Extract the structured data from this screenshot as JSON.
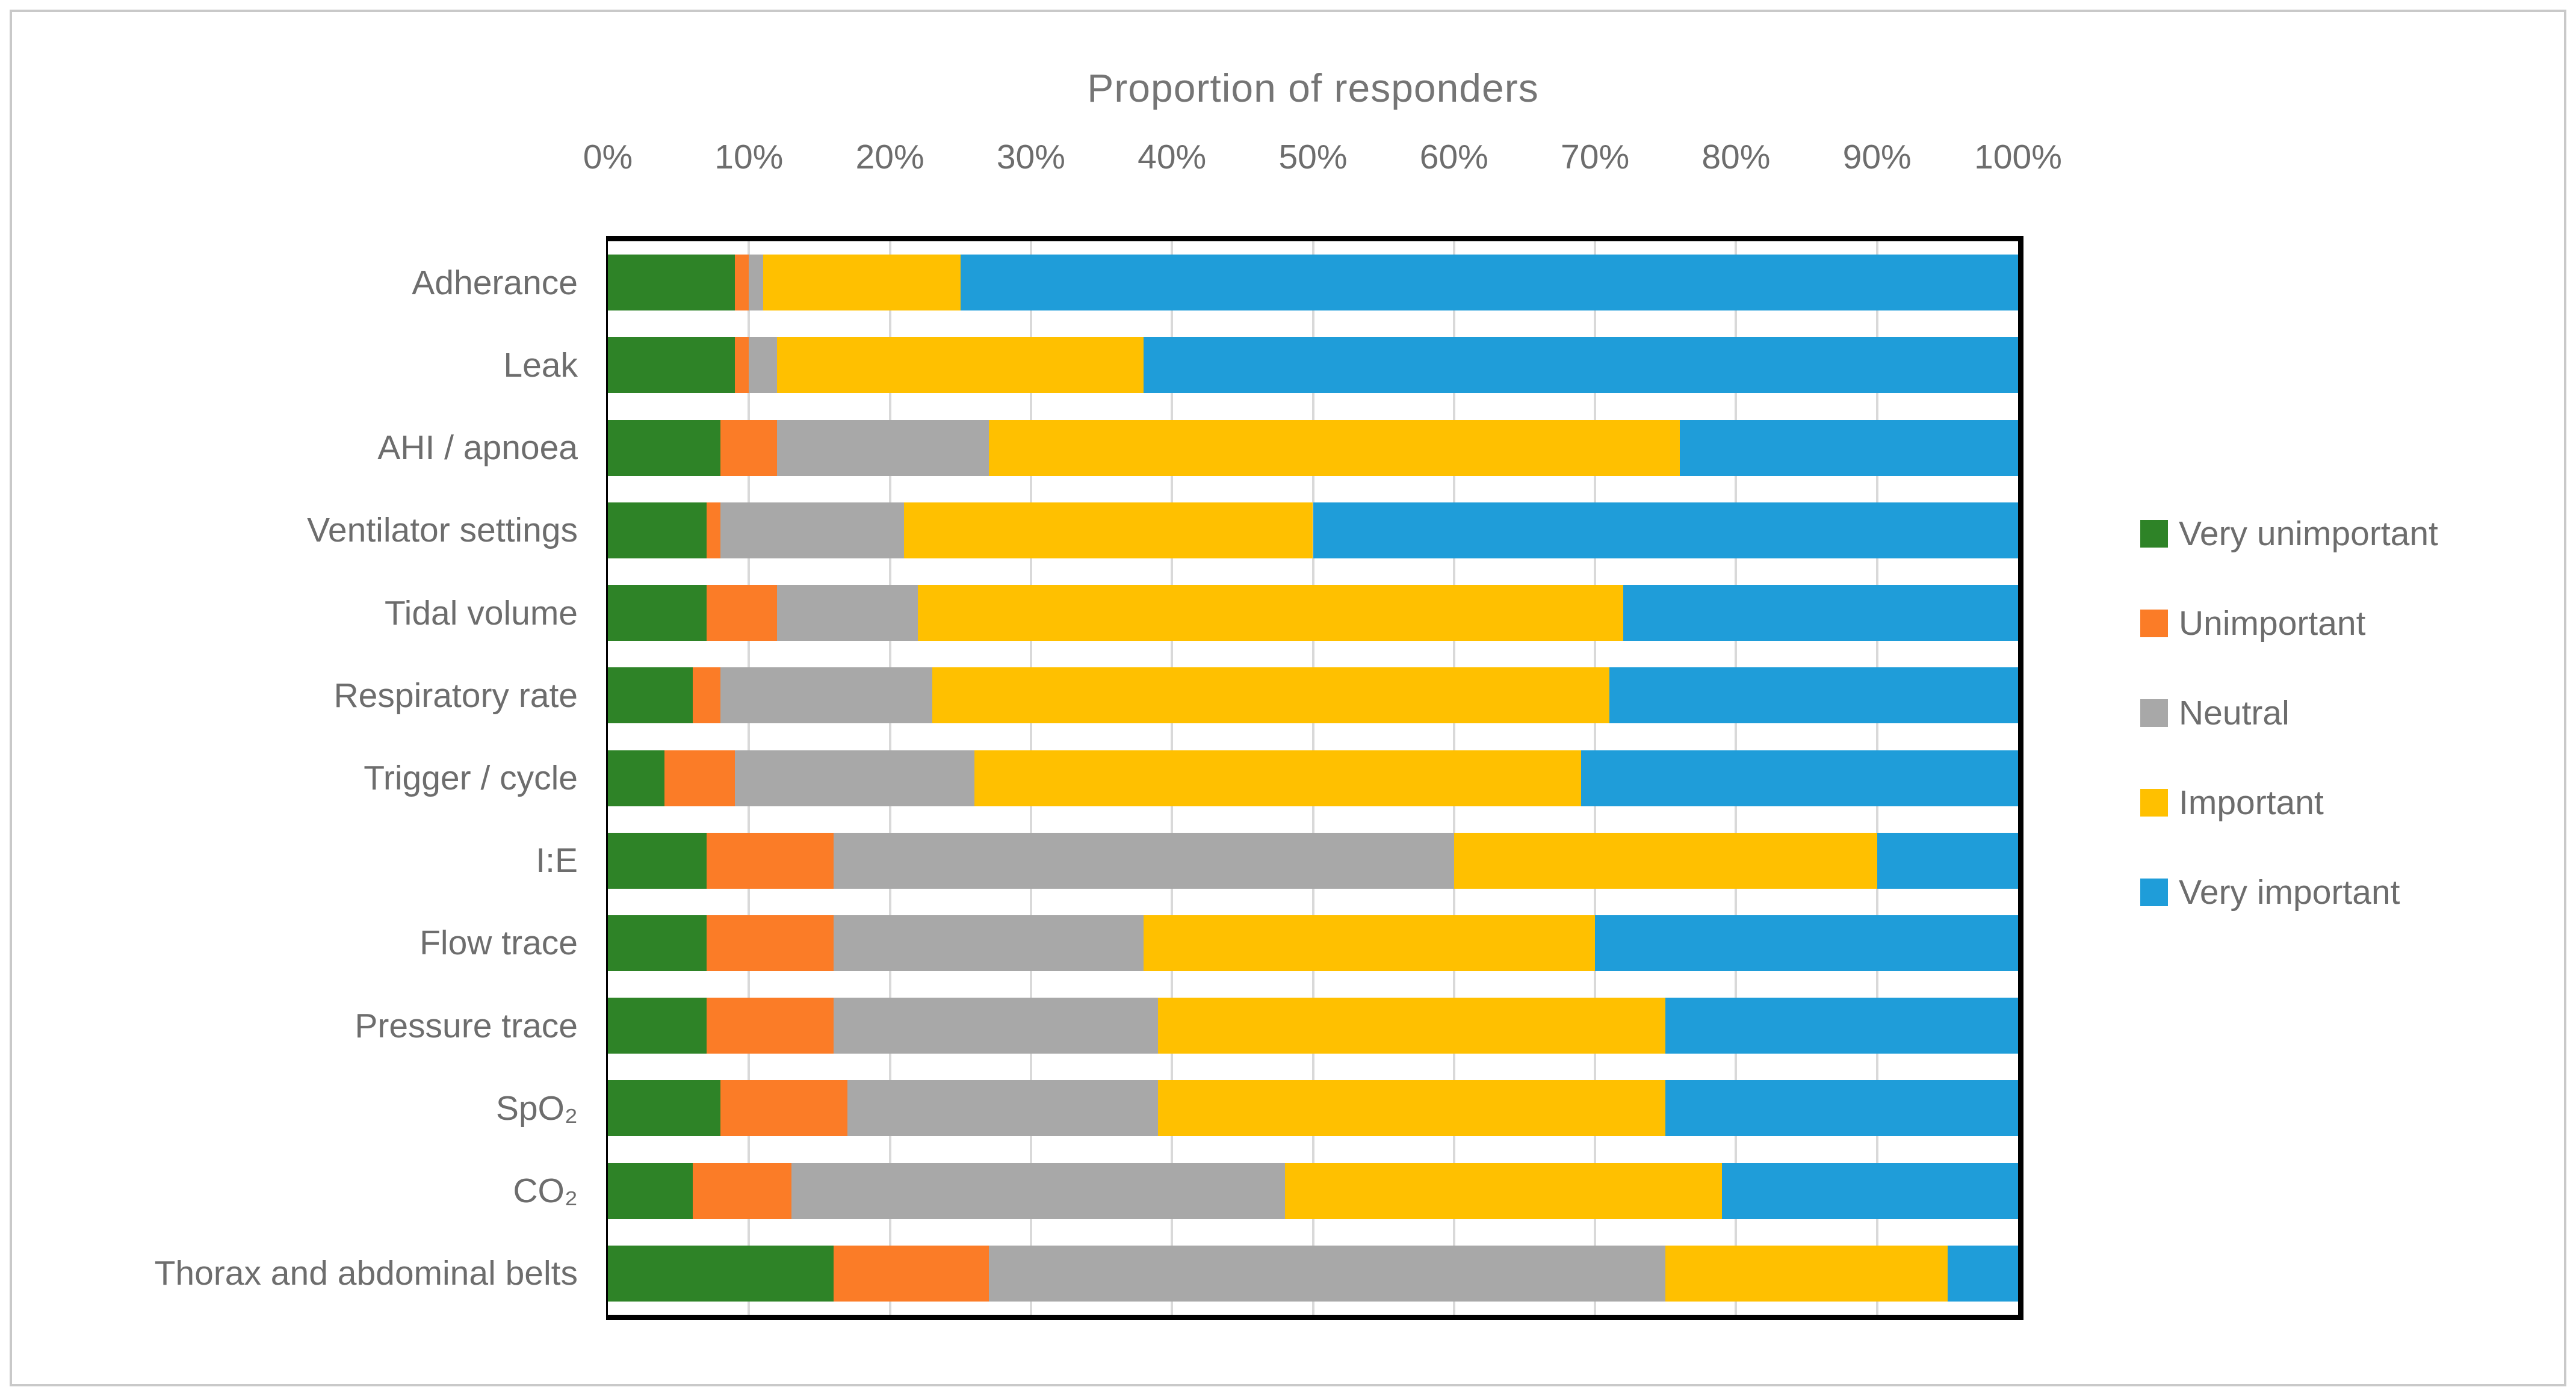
{
  "figure": {
    "title": "Proportion of responders"
  },
  "axis": {
    "tick_labels": [
      "0%",
      "10%",
      "20%",
      "30%",
      "40%",
      "50%",
      "60%",
      "70%",
      "80%",
      "90%",
      "100%"
    ],
    "min": 0,
    "max": 100
  },
  "legend": {
    "items": [
      {
        "label": "Very unimportant",
        "color": "#2E8327"
      },
      {
        "label": "Unimportant",
        "color": "#FB7C27"
      },
      {
        "label": "Neutral",
        "color": "#A8A8A8"
      },
      {
        "label": "Important",
        "color": "#FFC000"
      },
      {
        "label": "Very important",
        "color": "#1F9DD9"
      }
    ]
  },
  "chart_data": {
    "type": "bar",
    "orientation": "horizontal_stacked",
    "title": "Proportion of responders",
    "xlabel": "",
    "ylabel": "",
    "xlim": [
      0,
      100
    ],
    "grid": true,
    "legend_position": "right",
    "gridline_color": "#d9d9d9",
    "categories": [
      "Adherance",
      "Leak",
      "AHI / apnoea",
      "Ventilator settings",
      "Tidal volume",
      "Respiratory rate",
      "Trigger / cycle",
      "I:E",
      "Flow trace",
      "Pressure trace",
      "SpO₂",
      "CO₂",
      "Thorax and abdominal belts"
    ],
    "series": [
      {
        "name": "Very unimportant",
        "color": "#2E8327",
        "values": [
          9,
          9,
          8,
          7,
          7,
          6,
          4,
          7,
          7,
          7,
          8,
          6,
          16
        ]
      },
      {
        "name": "Unimportant",
        "color": "#FB7C27",
        "values": [
          1,
          1,
          4,
          1,
          5,
          2,
          5,
          9,
          9,
          9,
          9,
          7,
          11
        ]
      },
      {
        "name": "Neutral",
        "color": "#A8A8A8",
        "values": [
          1,
          2,
          15,
          13,
          10,
          15,
          17,
          44,
          22,
          23,
          22,
          35,
          48
        ]
      },
      {
        "name": "Important",
        "color": "#FFC000",
        "values": [
          14,
          26,
          49,
          29,
          50,
          48,
          43,
          30,
          32,
          36,
          36,
          31,
          20
        ]
      },
      {
        "name": "Very important",
        "color": "#1F9DD9",
        "values": [
          75,
          62,
          24,
          50,
          28,
          29,
          31,
          10,
          30,
          25,
          25,
          21,
          5
        ]
      }
    ]
  }
}
